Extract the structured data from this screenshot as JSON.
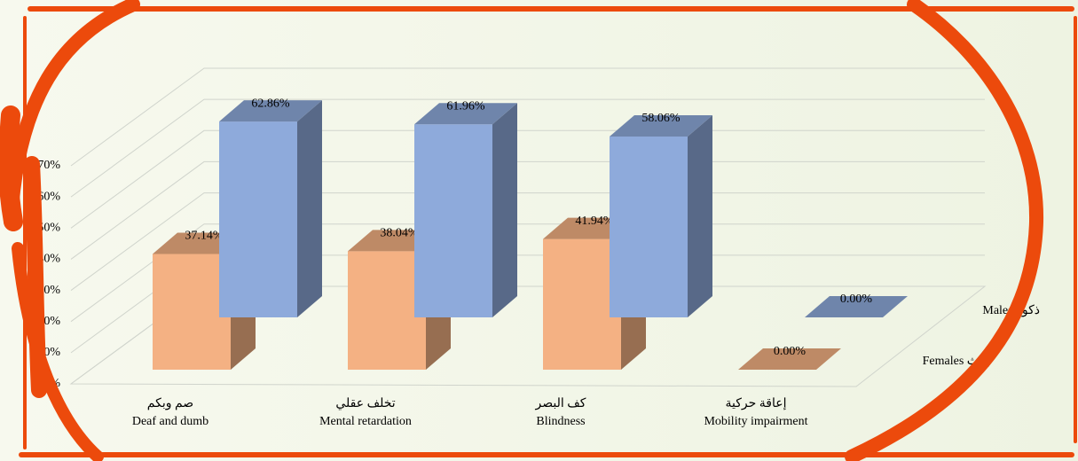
{
  "chart_data": {
    "type": "bar3d",
    "categories": [
      "Deaf and dumb",
      "Mental retardation",
      "Blindness",
      "Mobility impairment"
    ],
    "categories_ar": [
      "صم وبكم",
      "تخلف عقلي",
      "كف البصر",
      "إعاقة حركية"
    ],
    "series": [
      {
        "name": "Females إناث",
        "color": "#f4b183",
        "values": [
          37.14,
          38.04,
          41.94,
          0
        ],
        "value_labels": [
          "37.14%",
          "38.04%",
          "41.94%",
          "0.00%"
        ]
      },
      {
        "name": "Males ذكور",
        "color": "#8eaadb",
        "values": [
          62.86,
          61.96,
          58.06,
          0
        ],
        "value_labels": [
          "62.86%",
          "61.96%",
          "58.06%",
          "0.00%"
        ]
      }
    ],
    "ylim": [
      0,
      70
    ],
    "yticks": [
      {
        "value": 0,
        "label": "0%"
      },
      {
        "value": 10,
        "label": "10%"
      },
      {
        "value": 20,
        "label": "20%"
      },
      {
        "value": 30,
        "label": "30%"
      },
      {
        "value": 40,
        "label": "40%"
      },
      {
        "value": 50,
        "label": "50%"
      },
      {
        "value": 60,
        "label": "60%"
      },
      {
        "value": 70,
        "label": "70%"
      }
    ],
    "grid": true
  }
}
